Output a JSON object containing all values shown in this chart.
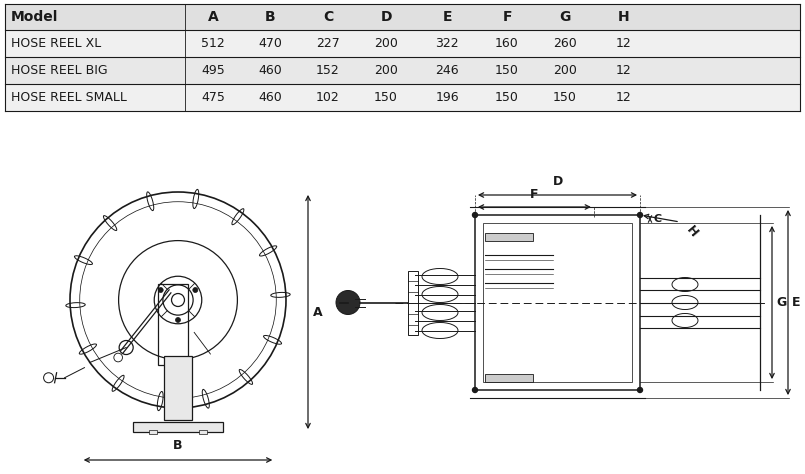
{
  "table_headers": [
    "Model",
    "A",
    "B",
    "C",
    "D",
    "E",
    "F",
    "G",
    "H"
  ],
  "table_rows": [
    [
      "HOSE REEL XL",
      "512",
      "470",
      "227",
      "200",
      "322",
      "160",
      "260",
      "12"
    ],
    [
      "HOSE REEL BIG",
      "495",
      "460",
      "152",
      "200",
      "246",
      "150",
      "200",
      "12"
    ],
    [
      "HOSE REEL SMALL",
      "475",
      "460",
      "102",
      "150",
      "196",
      "150",
      "150",
      "12"
    ]
  ],
  "text_color": "#1a1a1a",
  "line_color": "#1a1a1a",
  "bg_color": "#ffffff",
  "header_bg": "#e0e0e0",
  "row_bg1": "#f0f0f0",
  "row_bg2": "#e8e8e8",
  "dim_color": "#555555"
}
